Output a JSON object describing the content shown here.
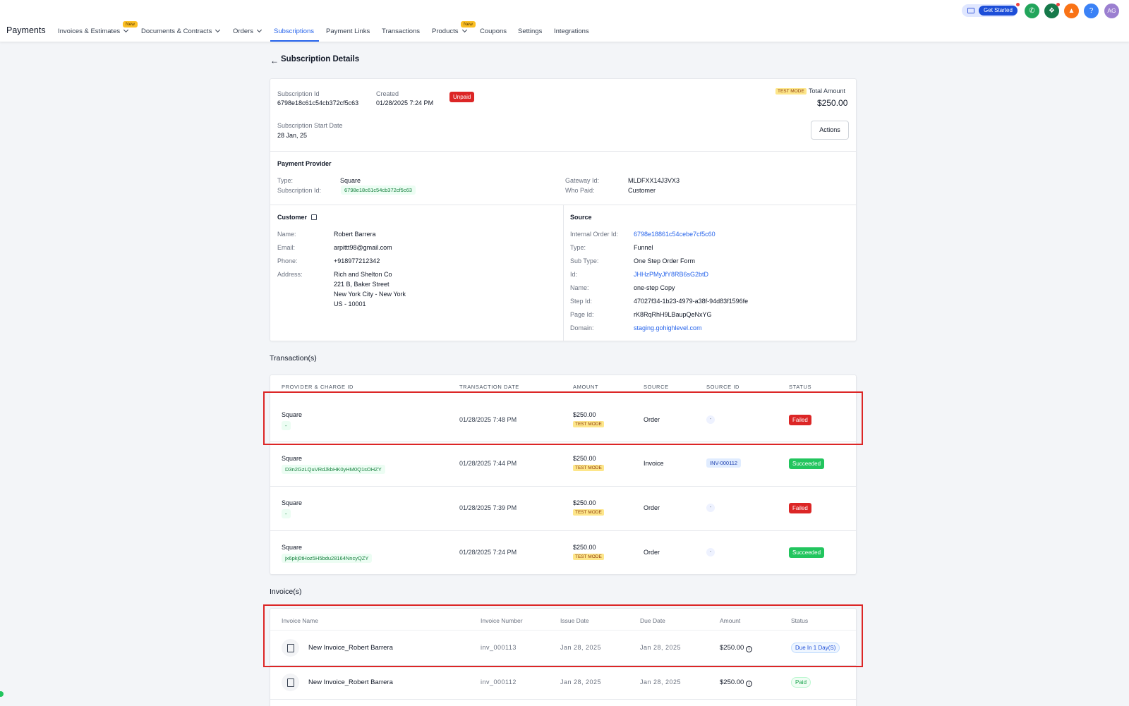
{
  "app": {
    "title": "Payments"
  },
  "nav": {
    "items": [
      {
        "label": "Invoices & Estimates"
      },
      {
        "label": "Documents & Contracts"
      },
      {
        "label": "Orders"
      },
      {
        "label": "Subscriptions"
      },
      {
        "label": "Payment Links"
      },
      {
        "label": "Transactions"
      },
      {
        "label": "Products"
      },
      {
        "label": "Coupons"
      },
      {
        "label": "Settings"
      },
      {
        "label": "Integrations"
      }
    ],
    "new_badge": "New",
    "active": "Subscriptions"
  },
  "header_actions": {
    "get_started": "Get Started",
    "help": "?",
    "avatar": "AG",
    "colors": {
      "phone": "#22a55b",
      "megaphone": "#16794a",
      "bell": "#f97316",
      "help": "#3b82f6",
      "avatar": "#9b7fd0"
    }
  },
  "page": {
    "back_icon": "arrow-left-icon",
    "title": "Subscription Details"
  },
  "summary": {
    "subscription_id_label": "Subscription Id",
    "subscription_id": "6798e18c61c54cb372cf5c63",
    "created_label": "Created",
    "created": "01/28/2025 7:24 PM",
    "status": "Unpaid",
    "test_mode": "TEST MODE",
    "total_label": "Total Amount",
    "total": "$250.00",
    "start_label": "Subscription Start Date",
    "start": "28 Jan, 25",
    "actions": "Actions"
  },
  "provider": {
    "title": "Payment Provider",
    "type_label": "Type:",
    "type": "Square",
    "sub_id_label": "Subscription Id:",
    "sub_id": "6798e18c61c54cb372cf5c63",
    "gateway_label": "Gateway Id:",
    "gateway": "MLDFXX14J3VX3",
    "who_paid_label": "Who Paid:",
    "who_paid": "Customer"
  },
  "customer": {
    "title": "Customer",
    "name_label": "Name:",
    "name": "Robert Barrera",
    "email_label": "Email:",
    "email": "arpittt98@gmail.com",
    "phone_label": "Phone:",
    "phone": "+918977212342",
    "address_label": "Address:",
    "address": [
      "Rich and Shelton Co",
      "221 B, Baker Street",
      "New York City - New York",
      "US - 10001"
    ]
  },
  "source": {
    "title": "Source",
    "internal_label": "Internal Order Id:",
    "internal": "6798e18861c54cebe7cf5c60",
    "type_label": "Type:",
    "type": "Funnel",
    "subtype_label": "Sub Type:",
    "subtype": "One Step Order Form",
    "id_label": "Id:",
    "id": "JHHzPMyJfY8RB6sG2btD",
    "name_label": "Name:",
    "name": "one-step Copy",
    "step_label": "Step Id:",
    "step": "47027f34-1b23-4979-a38f-94d83f1596fe",
    "page_label": "Page Id:",
    "page": "rK8RqRhH9LBaupQeNxYG",
    "domain_label": "Domain:",
    "domain": "staging.gohighlevel.com"
  },
  "transactions": {
    "title": "Transaction(s)",
    "headers": [
      "PROVIDER & CHARGE ID",
      "TRANSACTION DATE",
      "AMOUNT",
      "SOURCE",
      "SOURCE ID",
      "STATUS"
    ],
    "rows": [
      {
        "provider": "Square",
        "charge": "-",
        "date": "01/28/2025 7:48 PM",
        "amount": "$250.00",
        "mode": "TEST MODE",
        "source": "Order",
        "source_id": "-",
        "status": "Failed"
      },
      {
        "provider": "Square",
        "charge": "D3n2GzLQuVRdJkbHK0yHM0Q1sOHZY",
        "date": "01/28/2025 7:44 PM",
        "amount": "$250.00",
        "mode": "TEST MODE",
        "source": "Invoice",
        "source_id": "INV-000112",
        "status": "Succeeded"
      },
      {
        "provider": "Square",
        "charge": "-",
        "date": "01/28/2025 7:39 PM",
        "amount": "$250.00",
        "mode": "TEST MODE",
        "source": "Order",
        "source_id": "-",
        "status": "Failed"
      },
      {
        "provider": "Square",
        "charge": "jx6pkj0tHoz5H5bdu28164NncyQZY",
        "date": "01/28/2025 7:24 PM",
        "amount": "$250.00",
        "mode": "TEST MODE",
        "source": "Order",
        "source_id": "-",
        "status": "Succeeded"
      }
    ]
  },
  "invoices": {
    "title": "Invoice(s)",
    "headers": [
      "Invoice Name",
      "Invoice Number",
      "Issue Date",
      "Due Date",
      "Amount",
      "Status"
    ],
    "rows": [
      {
        "name": "New Invoice_Robert Barrera",
        "number": "inv_000113",
        "issue": "Jan 28, 2025",
        "due": "Jan 28, 2025",
        "amount": "$250.00",
        "status": "Due In 1 Day(S)"
      },
      {
        "name": "New Invoice_Robert Barrera",
        "number": "inv_000112",
        "issue": "Jan 28, 2025",
        "due": "Jan 28, 2025",
        "amount": "$250.00",
        "status": "Paid"
      }
    ]
  }
}
